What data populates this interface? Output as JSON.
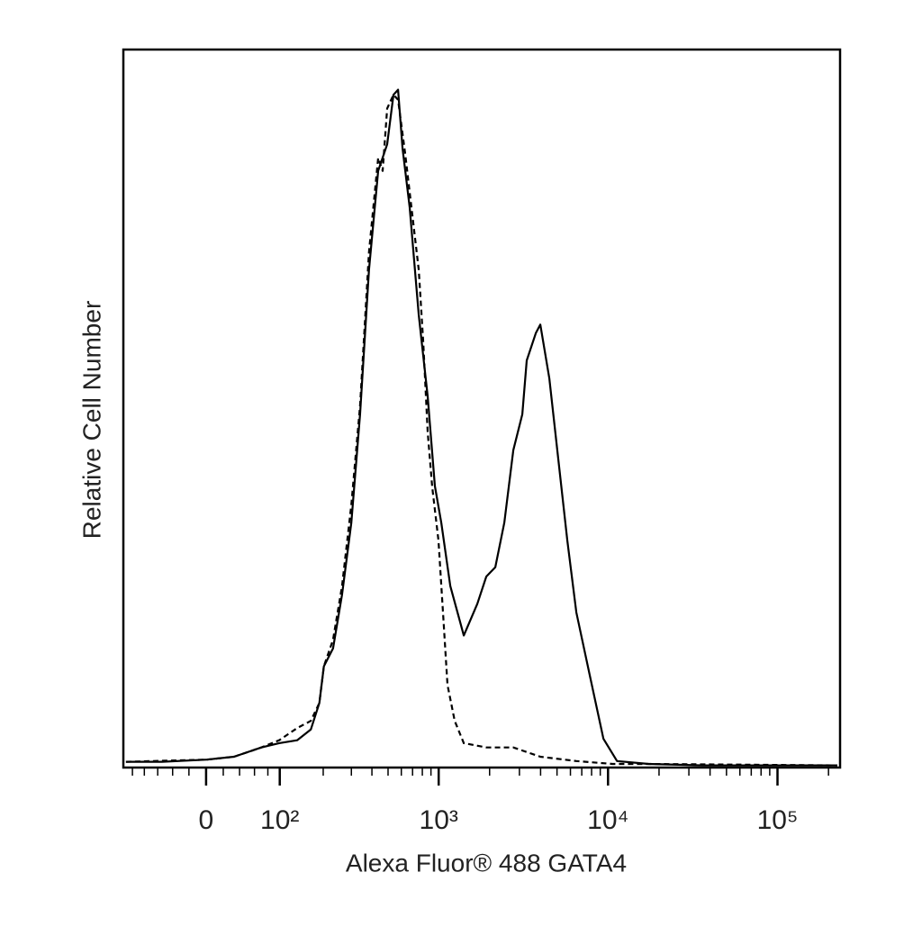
{
  "chart_data": {
    "type": "histogram-overlay",
    "x_label": "Alexa Fluor® 488 GATA4",
    "y_label": "Relative Cell Number",
    "xscale": "biexponential",
    "xlim": [
      -117,
      234000
    ],
    "ylim": [
      0,
      100
    ],
    "xticks": [
      0,
      {
        "value": 100,
        "label": "10²"
      },
      {
        "value": 1000,
        "label": "10³"
      },
      {
        "value": 10000,
        "label": "10⁴"
      },
      {
        "value": 100000,
        "label": "10⁵"
      }
    ],
    "xminorticks": [
      -100,
      -80,
      -60,
      -40,
      -20,
      20,
      40,
      60,
      80,
      200,
      300,
      400,
      500,
      600,
      700,
      800,
      900,
      2000,
      3000,
      4000,
      5000,
      6000,
      7000,
      8000,
      9000,
      20000,
      30000,
      40000,
      50000,
      60000,
      70000,
      80000,
      90000,
      200000
    ],
    "series": [
      {
        "color": "#000000",
        "line_style": "solid",
        "x": [
          -112,
          -54,
          1,
          33,
          70,
          99,
          134,
          166,
          189,
          202,
          231,
          263,
          300,
          339,
          384,
          436,
          494,
          539,
          574,
          610,
          673,
          762,
          861,
          950,
          1036,
          1171,
          1408,
          1692,
          1913,
          2162,
          2442,
          2760,
          3120,
          3315,
          3749,
          3987,
          4505,
          5092,
          5755,
          6503,
          7812,
          9393,
          11297,
          17332,
          36117,
          225675
        ],
        "values": [
          0.8,
          0.8,
          1.1,
          1.5,
          2.8,
          3.4,
          3.8,
          5.3,
          9.0,
          14.1,
          16.6,
          24.1,
          34.1,
          49.2,
          69.3,
          83.1,
          86.8,
          93.7,
          94.4,
          86.2,
          78.0,
          63.0,
          51.7,
          39.2,
          34.1,
          25.3,
          18.4,
          22.8,
          26.6,
          27.9,
          34.1,
          44.2,
          49.2,
          56.7,
          60.5,
          61.7,
          54.2,
          42.9,
          31.6,
          21.6,
          12.8,
          4.0,
          0.9,
          0.5,
          0.3,
          0.3
        ]
      },
      {
        "color": "#000000",
        "line_style": "dashed",
        "x": [
          -112,
          1,
          33,
          70,
          99,
          134,
          166,
          189,
          202,
          231,
          263,
          300,
          339,
          384,
          436,
          464,
          494,
          539,
          574,
          632,
          699,
          762,
          810,
          861,
          915,
          998,
          1061,
          1127,
          1244,
          1408,
          1913,
          2760,
          3987,
          6503,
          10619,
          17332,
          225675
        ],
        "values": [
          0.8,
          1.1,
          1.5,
          2.8,
          3.8,
          5.5,
          6.5,
          9.0,
          14.1,
          17.8,
          25.3,
          36.6,
          50.4,
          71.8,
          84.9,
          83.1,
          91.8,
          93.7,
          93.0,
          85.6,
          76.8,
          69.3,
          59.2,
          46.7,
          39.1,
          31.6,
          21.6,
          11.5,
          6.5,
          3.4,
          2.8,
          2.8,
          1.5,
          0.9,
          0.5,
          0.5,
          0.3
        ]
      }
    ]
  }
}
